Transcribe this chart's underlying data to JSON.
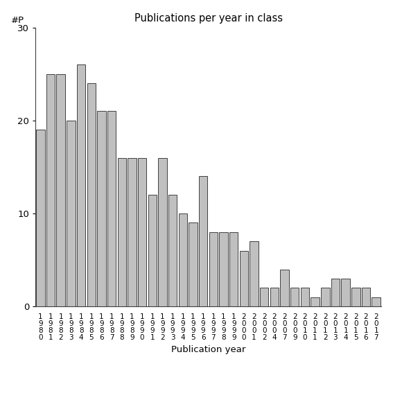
{
  "title": "Publications per year in class",
  "xlabel": "Publication year",
  "ylabel": "#P",
  "bar_color": "#c0c0c0",
  "edge_color": "#404040",
  "categories": [
    "1\n9\n8\n0",
    "1\n9\n8\n1",
    "1\n9\n8\n2",
    "1\n9\n8\n3",
    "1\n9\n8\n4",
    "1\n9\n8\n5",
    "1\n9\n8\n6",
    "1\n9\n8\n7",
    "1\n9\n8\n8",
    "1\n9\n8\n9",
    "1\n9\n9\n0",
    "1\n9\n9\n1",
    "1\n9\n9\n2",
    "1\n9\n9\n3",
    "1\n9\n9\n4",
    "1\n9\n9\n5",
    "1\n9\n9\n6",
    "1\n9\n9\n7",
    "1\n9\n9\n8",
    "1\n9\n9\n9",
    "2\n0\n0\n0",
    "2\n0\n0\n1",
    "2\n0\n0\n2",
    "2\n0\n0\n4",
    "2\n0\n0\n7",
    "2\n0\n0\n9",
    "2\n0\n1\n0",
    "2\n0\n1\n1",
    "2\n0\n1\n2",
    "2\n0\n1\n3",
    "2\n0\n1\n4",
    "2\n0\n1\n5",
    "2\n0\n1\n6",
    "2\n0\n1\n7"
  ],
  "values": [
    19,
    25,
    25,
    20,
    26,
    24,
    21,
    21,
    16,
    16,
    16,
    12,
    16,
    12,
    10,
    9,
    14,
    8,
    8,
    8,
    6,
    7,
    2,
    2,
    4,
    2,
    2,
    1,
    2,
    3,
    3,
    2,
    2,
    1
  ],
  "ylim": [
    0,
    30
  ],
  "yticks": [
    0,
    10,
    20,
    30
  ],
  "background_color": "#ffffff"
}
